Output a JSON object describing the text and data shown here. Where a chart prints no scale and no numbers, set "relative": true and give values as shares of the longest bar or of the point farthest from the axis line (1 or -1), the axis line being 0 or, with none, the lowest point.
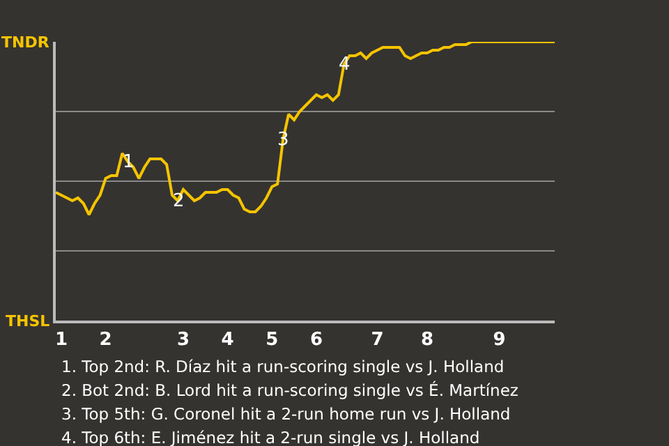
{
  "chart_data": {
    "type": "line",
    "categories": [
      null,
      "1",
      null,
      null,
      null,
      null,
      null,
      null,
      null,
      "2",
      null,
      null,
      null,
      null,
      null,
      null,
      null,
      null,
      null,
      null,
      null,
      null,
      null,
      "3",
      null,
      null,
      null,
      null,
      null,
      null,
      null,
      "4",
      null,
      null,
      null,
      null,
      null,
      null,
      null,
      "5",
      null,
      null,
      null,
      null,
      null,
      null,
      null,
      "6",
      null,
      null,
      null,
      null,
      null,
      null,
      null,
      null,
      null,
      null,
      "7",
      null,
      null,
      null,
      null,
      null,
      null,
      null,
      null,
      "8",
      null,
      null,
      null,
      null,
      null,
      null,
      null,
      null,
      null,
      null,
      null,
      null,
      "9",
      null,
      null,
      null,
      null,
      null,
      null,
      null,
      null,
      null,
      null
    ],
    "series": [
      {
        "color": "#f5c400",
        "values": [
          0.46,
          0.45,
          0.44,
          0.43,
          0.44,
          0.42,
          0.38,
          0.42,
          0.45,
          0.51,
          0.52,
          0.52,
          0.6,
          0.57,
          0.55,
          0.51,
          0.55,
          0.58,
          0.58,
          0.58,
          0.56,
          0.45,
          0.43,
          0.47,
          0.45,
          0.43,
          0.44,
          0.46,
          0.46,
          0.46,
          0.47,
          0.47,
          0.45,
          0.44,
          0.4,
          0.39,
          0.39,
          0.41,
          0.44,
          0.48,
          0.49,
          0.65,
          0.74,
          0.72,
          0.75,
          0.77,
          0.79,
          0.81,
          0.8,
          0.81,
          0.79,
          0.81,
          0.92,
          0.95,
          0.95,
          0.96,
          0.94,
          0.96,
          0.97,
          0.98,
          0.98,
          0.98,
          0.98,
          0.95,
          0.94,
          0.95,
          0.96,
          0.96,
          0.97,
          0.97,
          0.98,
          0.98,
          0.99,
          0.99,
          0.99,
          1,
          1,
          1,
          1,
          1,
          1,
          1,
          1,
          1,
          1,
          1,
          1,
          1,
          1,
          1,
          1
        ],
        "name": null
      }
    ],
    "relative": true,
    "grid": true,
    "marker": "none",
    "line_style": "solid",
    "annotations": [
      {
        "text": "1",
        "y": 0.57
      },
      {
        "text": "2",
        "y": 0.43
      },
      {
        "text": "3",
        "y": 0.65
      },
      {
        "text": "4",
        "y": 0.92
      },
      "TNDR",
      "THSL",
      "1. Top 2nd: R. Díaz hit a run-scoring single vs J. Holland",
      "2. Bot 2nd: B. Lord hit a run-scoring single vs É. Martínez",
      "3. Top 5th: G. Coronel hit a 2-run home run vs J. Holland",
      "4. Top 6th: E. Jiménez hit a 2-run single vs J. Holland"
    ]
  }
}
